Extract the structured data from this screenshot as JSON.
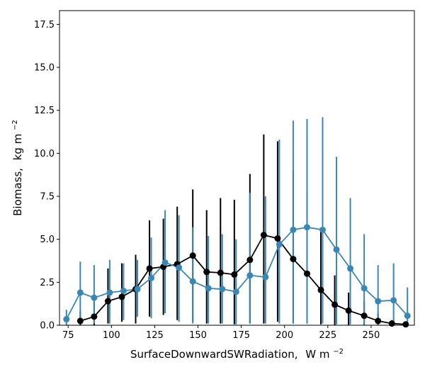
{
  "chart_data": {
    "type": "scatter",
    "xlabel": "SurfaceDownwardSWRadiation,",
    "xlabel_unit": "W m",
    "xlabel_unit_exp": "−2",
    "ylabel": "Biomass,",
    "ylabel_unit": "kg m",
    "ylabel_unit_exp": "−2",
    "xlim": [
      70,
      275
    ],
    "ylim": [
      0,
      18.3
    ],
    "xticks": [
      75,
      100,
      125,
      150,
      175,
      200,
      225,
      250
    ],
    "xtick_labels": [
      "75",
      "100",
      "125",
      "150",
      "175",
      "200",
      "225",
      "250"
    ],
    "yticks": [
      0,
      2.5,
      5,
      7.5,
      10,
      12.5,
      15,
      17.5
    ],
    "ytick_labels": [
      "0.0",
      "2.5",
      "5.0",
      "7.5",
      "10.0",
      "12.5",
      "15.0",
      "17.5"
    ],
    "grid": false,
    "legend": "none",
    "series": [
      {
        "color": "#000000",
        "points": [
          {
            "x": 82,
            "y": 0.25,
            "lo": 0,
            "hi": 0.8
          },
          {
            "x": 90,
            "y": 0.5,
            "lo": 0,
            "hi": 1.4
          },
          {
            "x": 98,
            "y": 1.4,
            "lo": 0.1,
            "hi": 3.3
          },
          {
            "x": 106,
            "y": 1.65,
            "lo": 0.2,
            "hi": 3.6
          },
          {
            "x": 114,
            "y": 2.1,
            "lo": 0.1,
            "hi": 4.1
          },
          {
            "x": 122,
            "y": 3.3,
            "lo": 0.5,
            "hi": 6.1
          },
          {
            "x": 130,
            "y": 3.4,
            "lo": 0.6,
            "hi": 6.2
          },
          {
            "x": 138,
            "y": 3.55,
            "lo": 0.3,
            "hi": 6.9
          },
          {
            "x": 147,
            "y": 4.05,
            "lo": 0.2,
            "hi": 7.9
          },
          {
            "x": 155,
            "y": 3.1,
            "lo": 0.1,
            "hi": 6.7
          },
          {
            "x": 163,
            "y": 3.05,
            "lo": 0.1,
            "hi": 7.4
          },
          {
            "x": 171,
            "y": 2.95,
            "lo": 0.05,
            "hi": 7.3
          },
          {
            "x": 180,
            "y": 3.8,
            "lo": 0.1,
            "hi": 8.8
          },
          {
            "x": 188,
            "y": 5.25,
            "lo": 0.1,
            "hi": 11.1
          },
          {
            "x": 196,
            "y": 5.05,
            "lo": 0.2,
            "hi": 10.7
          },
          {
            "x": 205,
            "y": 3.85,
            "lo": 0.1,
            "hi": 9.0
          },
          {
            "x": 213,
            "y": 3.0,
            "lo": 0.1,
            "hi": 7.8
          },
          {
            "x": 221,
            "y": 2.05,
            "lo": 0.05,
            "hi": 5.6
          },
          {
            "x": 229,
            "y": 1.2,
            "lo": 0,
            "hi": 2.9
          },
          {
            "x": 237,
            "y": 0.85,
            "lo": 0,
            "hi": 1.9
          },
          {
            "x": 246,
            "y": 0.55,
            "lo": 0,
            "hi": 1.4
          },
          {
            "x": 254,
            "y": 0.25,
            "lo": 0,
            "hi": 0.7
          },
          {
            "x": 262,
            "y": 0.1,
            "lo": 0,
            "hi": 0.3
          },
          {
            "x": 270,
            "y": 0.05,
            "lo": 0,
            "hi": 0.15
          }
        ]
      },
      {
        "color": "#3a87b5",
        "points": [
          {
            "x": 74,
            "y": 0.35,
            "lo": 0,
            "hi": 0.9
          },
          {
            "x": 82,
            "y": 1.9,
            "lo": 0.1,
            "hi": 3.7
          },
          {
            "x": 90,
            "y": 1.6,
            "lo": 0.1,
            "hi": 3.5
          },
          {
            "x": 99,
            "y": 1.9,
            "lo": 0.1,
            "hi": 3.8
          },
          {
            "x": 107,
            "y": 2.0,
            "lo": 0.3,
            "hi": 3.6
          },
          {
            "x": 115,
            "y": 2.1,
            "lo": 0.5,
            "hi": 3.8
          },
          {
            "x": 123,
            "y": 2.75,
            "lo": 0.4,
            "hi": 5.1
          },
          {
            "x": 131,
            "y": 3.65,
            "lo": 0.7,
            "hi": 6.7
          },
          {
            "x": 139,
            "y": 3.35,
            "lo": 0.2,
            "hi": 6.4
          },
          {
            "x": 147,
            "y": 2.55,
            "lo": 0.1,
            "hi": 5.7
          },
          {
            "x": 156,
            "y": 2.15,
            "lo": 0.1,
            "hi": 5.2
          },
          {
            "x": 164,
            "y": 2.1,
            "lo": 0.1,
            "hi": 5.3
          },
          {
            "x": 172,
            "y": 1.95,
            "lo": 0.05,
            "hi": 5.0
          },
          {
            "x": 180,
            "y": 2.9,
            "lo": 0.1,
            "hi": 7.7
          },
          {
            "x": 189,
            "y": 2.8,
            "lo": 0.1,
            "hi": 7.5
          },
          {
            "x": 197,
            "y": 4.7,
            "lo": 0.1,
            "hi": 10.8
          },
          {
            "x": 205,
            "y": 5.55,
            "lo": 0.1,
            "hi": 11.9
          },
          {
            "x": 213,
            "y": 5.7,
            "lo": 0.1,
            "hi": 12.0
          },
          {
            "x": 222,
            "y": 5.55,
            "lo": 0.1,
            "hi": 12.1
          },
          {
            "x": 230,
            "y": 4.4,
            "lo": 0.05,
            "hi": 9.8
          },
          {
            "x": 238,
            "y": 3.3,
            "lo": 0.05,
            "hi": 7.4
          },
          {
            "x": 246,
            "y": 2.15,
            "lo": 0,
            "hi": 5.3
          },
          {
            "x": 254,
            "y": 1.4,
            "lo": 0,
            "hi": 3.5
          },
          {
            "x": 263,
            "y": 1.45,
            "lo": 0,
            "hi": 3.6
          },
          {
            "x": 271,
            "y": 0.55,
            "lo": 0,
            "hi": 2.2
          }
        ]
      }
    ]
  }
}
